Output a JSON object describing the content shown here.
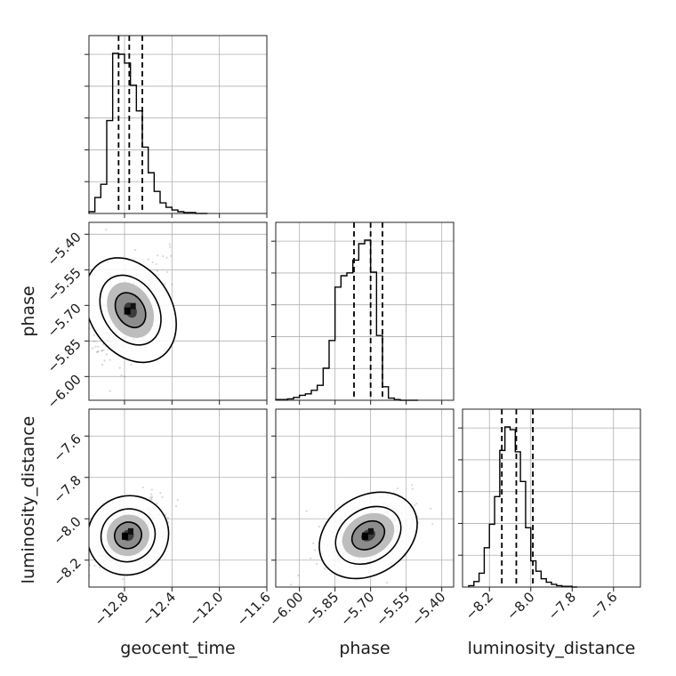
{
  "chart_data": {
    "type": "corner",
    "parameters": [
      "geocent_time",
      "phase",
      "luminosity_distance"
    ],
    "axis_labels": {
      "geocent_time": "geocent_time",
      "phase": "phase",
      "luminosity_distance": "luminosity_distance"
    },
    "ranges": {
      "geocent_time": [
        -13.1,
        -11.6
      ],
      "phase": [
        -6.1,
        -5.35
      ],
      "luminosity_distance": [
        -8.33,
        -7.47
      ]
    },
    "ticks": {
      "geocent_time": [
        "−12.8",
        "−12.4",
        "−12.0",
        "−11.6"
      ],
      "phase": [
        "−6.00",
        "−5.85",
        "−5.70",
        "−5.55",
        "−5.40"
      ],
      "luminosity_distance": [
        "−8.2",
        "−8.0",
        "−7.8",
        "−7.6"
      ]
    },
    "tick_values": {
      "geocent_time": [
        -12.8,
        -12.4,
        -12.0,
        -11.6
      ],
      "phase": [
        -6.0,
        -5.85,
        -5.7,
        -5.55,
        -5.4
      ],
      "luminosity_distance": [
        -8.2,
        -8.0,
        -7.8,
        -7.6
      ]
    },
    "grid": true,
    "histograms": {
      "geocent_time": {
        "bin_edges": [
          -13.1,
          -13.05,
          -13.0,
          -12.95,
          -12.9,
          -12.85,
          -12.8,
          -12.75,
          -12.7,
          -12.65,
          -12.6,
          -12.55,
          -12.5,
          -12.45,
          -12.4,
          -12.35,
          -12.3,
          -12.25,
          -12.2,
          -12.15,
          -12.1
        ],
        "counts": [
          2,
          18,
          33,
          105,
          181,
          180,
          170,
          145,
          116,
          75,
          46,
          25,
          12,
          7,
          4,
          2,
          1,
          1,
          0,
          0
        ]
      },
      "phase": {
        "bin_edges": [
          -6.1,
          -6.075,
          -6.05,
          -6.025,
          -6.0,
          -5.975,
          -5.95,
          -5.925,
          -5.9,
          -5.875,
          -5.85,
          -5.825,
          -5.8,
          -5.775,
          -5.75,
          -5.725,
          -5.7,
          -5.675,
          -5.65,
          -5.625,
          -5.6,
          -5.575,
          -5.55,
          -5.525,
          -5.5
        ],
        "counts": [
          1,
          1,
          2,
          4,
          7,
          9,
          14,
          21,
          45,
          84,
          159,
          175,
          179,
          197,
          220,
          225,
          180,
          91,
          19,
          3,
          1,
          0,
          0,
          0
        ]
      },
      "luminosity_distance": {
        "bin_edges": [
          -8.3,
          -8.275,
          -8.25,
          -8.225,
          -8.2,
          -8.175,
          -8.15,
          -8.125,
          -8.1,
          -8.075,
          -8.05,
          -8.025,
          -8.0,
          -7.975,
          -7.95,
          -7.925,
          -7.9,
          -7.875,
          -7.85,
          -7.825,
          -7.8,
          -7.775
        ],
        "counts": [
          2,
          8,
          20,
          57,
          91,
          131,
          198,
          232,
          228,
          196,
          153,
          86,
          38,
          23,
          12,
          7,
          4,
          2,
          1,
          1,
          0
        ]
      }
    },
    "quantile_lines": {
      "geocent_time": [
        -12.85,
        -12.76,
        -12.65
      ],
      "phase": [
        -5.77,
        -5.7,
        -5.65
      ],
      "luminosity_distance": [
        -8.14,
        -8.07,
        -7.99
      ]
    },
    "joint_2d": {
      "phase_vs_geocent_time": {
        "x": "geocent_time",
        "y": "phase",
        "center": [
          -12.75,
          -5.72
        ],
        "sd": [
          0.11,
          0.075
        ],
        "corr": 0.55,
        "levels": [
          1,
          2,
          3
        ]
      },
      "luminosity_distance_vs_geocent_time": {
        "x": "geocent_time",
        "y": "luminosity_distance",
        "center": [
          -12.77,
          -8.08
        ],
        "sd": [
          0.11,
          0.06
        ],
        "corr": 0.6,
        "levels": [
          1,
          2,
          3
        ]
      },
      "luminosity_distance_vs_phase": {
        "x": "phase",
        "y": "luminosity_distance",
        "center": [
          -5.71,
          -8.08
        ],
        "sd": [
          0.07,
          0.06
        ],
        "corr": 0.5,
        "levels": [
          1,
          2,
          3
        ]
      }
    }
  }
}
